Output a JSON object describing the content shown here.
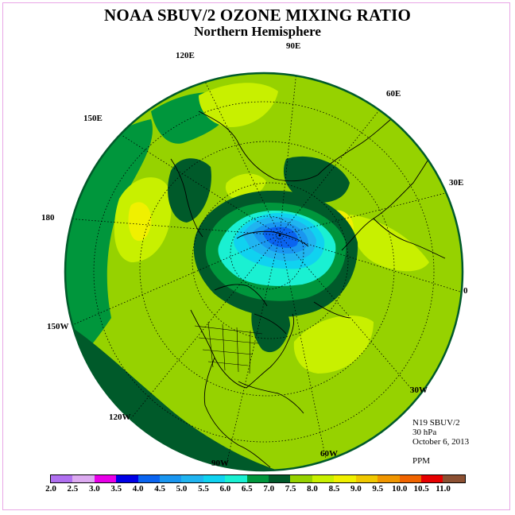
{
  "title": "NOAA SBUV/2 OZONE MIXING RATIO",
  "subtitle": "Northern Hemisphere",
  "longitude_labels": [
    "90E",
    "120E",
    "60E",
    "150E",
    "30E",
    "180",
    "0",
    "150W",
    "30W",
    "120W",
    "60W",
    "90W"
  ],
  "info": {
    "satellite": "N19 SBUV/2",
    "level": "30 hPa",
    "date": "October 6, 2013",
    "units": "PPM"
  },
  "colorbar": {
    "ticks": [
      "2.0",
      "2.5",
      "3.0",
      "3.5",
      "4.0",
      "4.5",
      "5.0",
      "5.5",
      "6.0",
      "6.5",
      "7.0",
      "7.5",
      "8.0",
      "8.5",
      "9.0",
      "9.5",
      "10.0",
      "10.5",
      "11.0"
    ],
    "colors": [
      "#b070f0",
      "#dcaaf0",
      "#e800e8",
      "#0000e6",
      "#0a64f0",
      "#1a96f0",
      "#20b4f0",
      "#10d2f0",
      "#1af0d2",
      "#00963c",
      "#005a2a",
      "#96d200",
      "#c8f000",
      "#f0f000",
      "#f0c800",
      "#f09600",
      "#f06400",
      "#e60000",
      "#8c5032"
    ]
  }
}
